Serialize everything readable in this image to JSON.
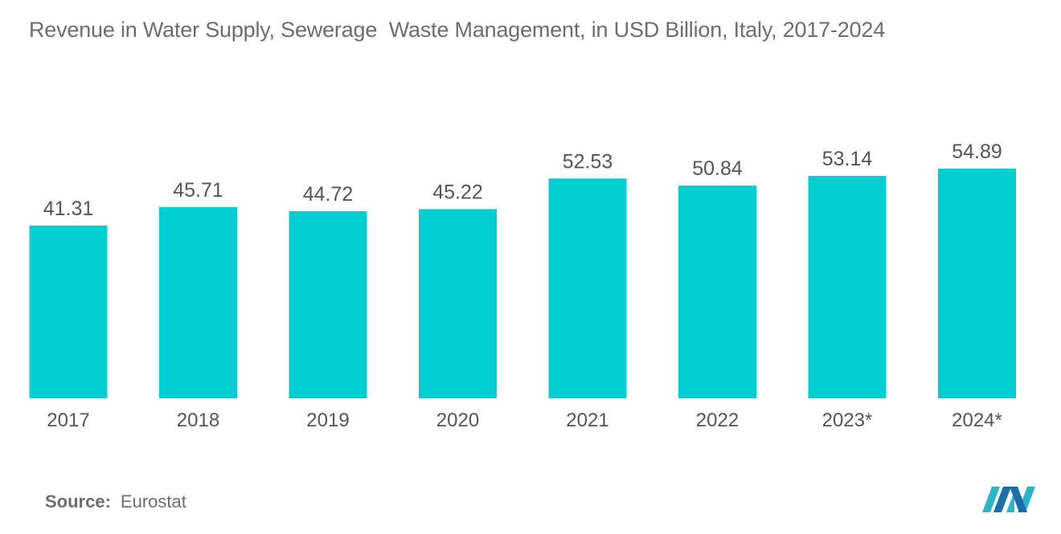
{
  "title": "Revenue in Water Supply, Sewerage  Waste Management, in USD Billion, Italy, 2017-2024",
  "source": {
    "label": "Source:",
    "value": "Eurostat"
  },
  "logo": {
    "icon": "mordor-intelligence-logo-icon"
  },
  "colors": {
    "bar": "#00ced1",
    "text": "#555555"
  },
  "chart_data": {
    "type": "bar",
    "categories": [
      "2017",
      "2018",
      "2019",
      "2020",
      "2021",
      "2022",
      "2023*",
      "2024*"
    ],
    "values": [
      41.31,
      45.71,
      44.72,
      45.22,
      52.53,
      50.84,
      53.14,
      54.89
    ],
    "value_labels": [
      "41.31",
      "45.71",
      "44.72",
      "45.22",
      "52.53",
      "50.84",
      "53.14",
      "54.89"
    ],
    "title": "Revenue in Water Supply, Sewerage  Waste Management, in USD Billion, Italy, 2017-2024",
    "xlabel": "",
    "ylabel": "",
    "ylim": [
      0,
      54.89
    ],
    "grid": false,
    "legend": "none"
  }
}
